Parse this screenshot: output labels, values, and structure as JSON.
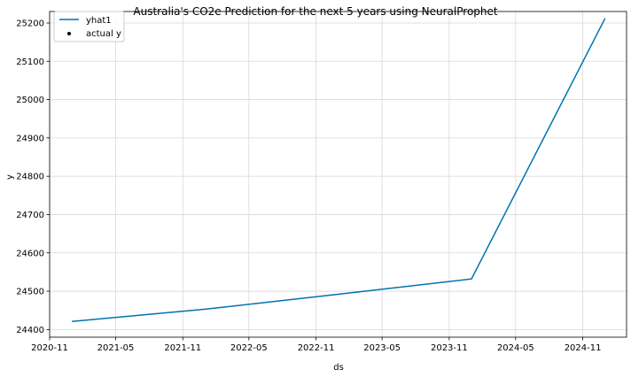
{
  "chart_data": {
    "type": "line",
    "title": "Australia's CO2e Prediction for the next 5 years using NeuralProphet",
    "xlabel": "ds",
    "ylabel": "y",
    "x_ticks": [
      "2020-11",
      "2021-05",
      "2021-11",
      "2022-05",
      "2022-11",
      "2023-05",
      "2023-11",
      "2024-05",
      "2024-11"
    ],
    "y_ticks": [
      24400,
      24500,
      24600,
      24700,
      24800,
      24900,
      25000,
      25100,
      25200
    ],
    "xlim": [
      "2020-11-01",
      "2025-03-01"
    ],
    "ylim": [
      24380,
      25230
    ],
    "grid": true,
    "legend_position": "top-left",
    "series": [
      {
        "name": "yhat1",
        "color": "#0072B2",
        "x": [
          "2021-01-01",
          "2022-01-01",
          "2023-01-01",
          "2024-01-01",
          "2025-01-01"
        ],
        "y": [
          24421,
          24453,
          24492,
          24532,
          25212
        ]
      },
      {
        "name": "actual y",
        "color": "#000000",
        "x": [],
        "y": []
      }
    ]
  }
}
